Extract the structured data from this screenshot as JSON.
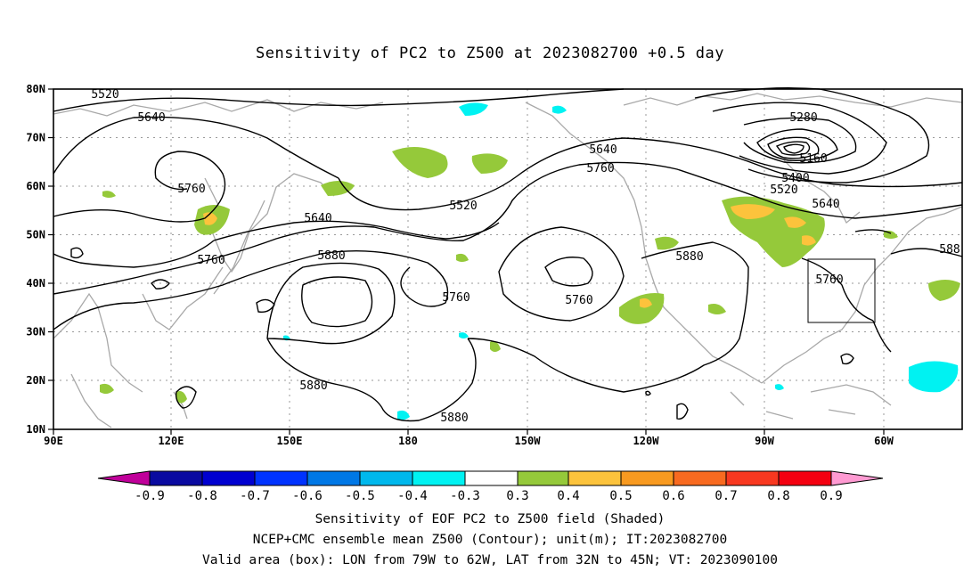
{
  "title": "Sensitivity of PC2 to Z500 at 2023082700 +0.5 day",
  "map": {
    "lon_ticks": [
      "90E",
      "120E",
      "150E",
      "180",
      "150W",
      "120W",
      "90W",
      "60W"
    ],
    "lat_ticks": [
      "80N",
      "70N",
      "60N",
      "50N",
      "40N",
      "30N",
      "20N",
      "10N"
    ],
    "contour_labels": [
      {
        "text": "5520"
      },
      {
        "text": "5640"
      },
      {
        "text": "5760"
      },
      {
        "text": "5640"
      },
      {
        "text": "5760"
      },
      {
        "text": "5880"
      },
      {
        "text": "5880"
      },
      {
        "text": "5520"
      },
      {
        "text": "5760"
      },
      {
        "text": "5880"
      },
      {
        "text": "5640"
      },
      {
        "text": "5760"
      },
      {
        "text": "5760"
      },
      {
        "text": "5280"
      },
      {
        "text": "5160"
      },
      {
        "text": "5400"
      },
      {
        "text": "5520"
      },
      {
        "text": "5640"
      },
      {
        "text": "5880"
      },
      {
        "text": "5760"
      },
      {
        "text": "588"
      }
    ],
    "valid_box": {
      "lon_west": -79,
      "lon_east": -62,
      "lat_south": 32,
      "lat_north": 45
    }
  },
  "colorbar": {
    "labels": [
      "-0.9",
      "-0.8",
      "-0.7",
      "-0.6",
      "-0.5",
      "-0.4",
      "-0.3",
      "0.3",
      "0.4",
      "0.5",
      "0.6",
      "0.7",
      "0.8",
      "0.9"
    ],
    "colors": [
      "#c0009a",
      "#0a0aa0",
      "#0000d0",
      "#0033ff",
      "#0078e6",
      "#00b8ec",
      "#00f2f2",
      "#ffffff",
      "#95c93a",
      "#fcc33c",
      "#f89a20",
      "#f86a20",
      "#f83820",
      "#f40010",
      "#ff9ad2"
    ]
  },
  "captions": [
    "Sensitivity of EOF PC2 to Z500 field (Shaded)",
    "NCEP+CMC ensemble mean Z500 (Contour); unit(m); IT:2023082700",
    "Valid area (box): LON from 79W to 62W, LAT from 32N to 45N; VT: 2023090100"
  ]
}
